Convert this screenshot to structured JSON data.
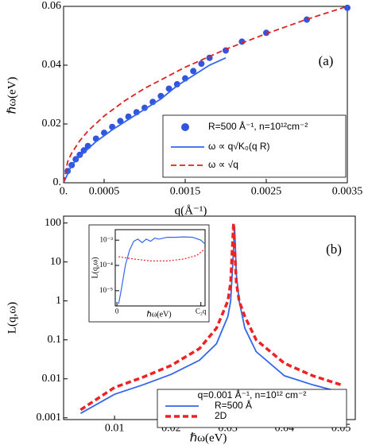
{
  "chart_data": [
    {
      "type": "line",
      "panel_label": "(a)",
      "x_label": "q(Å⁻¹)",
      "y_label": "ℏω(eV)",
      "xlim": [
        0,
        0.0035
      ],
      "ylim": [
        0,
        0.06
      ],
      "xticks": [
        {
          "value": 0,
          "label": "0."
        },
        0.0005,
        0.0015,
        0.0025,
        0.0035
      ],
      "yticks": [
        {
          "value": 0,
          "label": "0."
        },
        0.02,
        0.04,
        0.06
      ],
      "log_y": false,
      "legend": "lower right",
      "series": [
        {
          "name": "R=500 Å⁻¹, n=10¹²cm⁻²",
          "kind": "scatter",
          "color": "#3355dd",
          "x": [
            5e-05,
            0.0001,
            0.00015,
            0.0002,
            0.00025,
            0.0003,
            0.0004,
            0.0005,
            0.0006,
            0.0007,
            0.0008,
            0.0009,
            0.001,
            0.0011,
            0.0012,
            0.0013,
            0.0014,
            0.0015,
            0.0016,
            0.0017,
            0.0018,
            0.002,
            0.0022,
            0.0025,
            0.003,
            0.0035
          ],
          "values": [
            0.004,
            0.006,
            0.008,
            0.0095,
            0.011,
            0.0125,
            0.015,
            0.017,
            0.019,
            0.021,
            0.0225,
            0.024,
            0.0255,
            0.0275,
            0.0295,
            0.032,
            0.0335,
            0.0355,
            0.038,
            0.0405,
            0.0425,
            0.045,
            0.048,
            0.051,
            0.0555,
            0.0595
          ]
        },
        {
          "name": "ω ∝ q√K₀(q R)",
          "kind": "line",
          "dash": false,
          "color": "#3366ee",
          "x": [
            0,
            0.0001,
            0.0002,
            0.0004,
            0.0006,
            0.0008,
            0.001,
            0.0012,
            0.0014,
            0.0016,
            0.0018,
            0.002
          ],
          "values": [
            0,
            0.006,
            0.009,
            0.014,
            0.018,
            0.0215,
            0.025,
            0.0285,
            0.033,
            0.0365,
            0.04,
            0.0425
          ]
        },
        {
          "name": "ω ∝ √q",
          "kind": "line",
          "dash": true,
          "color": "#dd2222",
          "x": [
            0,
            5e-05,
            0.0001,
            0.0002,
            0.0003,
            0.0005,
            0.00075,
            0.001,
            0.0015,
            0.002,
            0.0025,
            0.003,
            0.0035
          ],
          "values": [
            0,
            0.0072,
            0.0101,
            0.0143,
            0.0176,
            0.0227,
            0.0278,
            0.0321,
            0.0393,
            0.0454,
            0.0507,
            0.0556,
            0.06
          ]
        }
      ]
    },
    {
      "type": "line",
      "panel_label": "(b)",
      "x_label": "ℏω(eV)",
      "y_label": "L(q,ω)",
      "xlim": [
        0.001,
        0.0525
      ],
      "ylim": [
        0.0009,
        150
      ],
      "xticks": [
        0.01,
        0.02,
        0.03,
        0.04,
        0.05
      ],
      "yticks": [
        0.001,
        0.01,
        0.1,
        1,
        10,
        100
      ],
      "log_y": true,
      "legend": "lower right",
      "legend_title": "q=0.001 Å⁻¹, n=10¹² cm⁻²",
      "series": [
        {
          "name": "R=500 Å",
          "kind": "line",
          "dash": false,
          "color": "#3366ee",
          "x": [
            0.004,
            0.01,
            0.015,
            0.02,
            0.025,
            0.028,
            0.03,
            0.0305,
            0.031,
            0.0312,
            0.0315,
            0.032,
            0.033,
            0.035,
            0.04,
            0.045,
            0.05
          ],
          "values": [
            0.0013,
            0.004,
            0.007,
            0.013,
            0.03,
            0.08,
            0.4,
            1,
            20,
            80,
            5,
            1,
            0.2,
            0.05,
            0.012,
            0.007,
            0.0045
          ]
        },
        {
          "name": "2D",
          "kind": "line",
          "dash": true,
          "color": "#ee2222",
          "x": [
            0.004,
            0.01,
            0.015,
            0.02,
            0.025,
            0.028,
            0.03,
            0.0305,
            0.031,
            0.0315,
            0.032,
            0.033,
            0.035,
            0.04,
            0.045,
            0.05
          ],
          "values": [
            0.0016,
            0.006,
            0.011,
            0.022,
            0.06,
            0.2,
            1,
            3,
            100,
            3,
            1,
            0.4,
            0.1,
            0.025,
            0.012,
            0.007
          ]
        }
      ]
    },
    {
      "type": "line",
      "x_label": "ℏω(eV)",
      "y_label": "L(q,ω)",
      "xlim": [
        -0.02,
        1.05
      ],
      "ylim": [
        2.5e-06,
        0.0026
      ],
      "xticks": [
        0,
        {
          "value": 1,
          "label": "C₂q"
        }
      ],
      "yticks": [
        {
          "value": 0.001,
          "label": "10⁻³"
        },
        {
          "value": 0.0001,
          "label": "10⁻⁴"
        },
        {
          "value": 1e-05,
          "label": "10⁻⁵"
        }
      ],
      "log_y": true,
      "series": [
        {
          "kind": "line",
          "dash": false,
          "color": "#3366ee",
          "x": [
            0.02,
            0.05,
            0.1,
            0.15,
            0.2,
            0.25,
            0.3,
            0.35,
            0.4,
            0.45,
            0.5,
            0.6,
            0.7,
            0.8,
            0.9,
            1.0,
            1.05
          ],
          "values": [
            3e-06,
            1e-05,
            0.0001,
            0.0004,
            0.0009,
            0.0011,
            0.0008,
            0.0011,
            0.0009,
            0.0012,
            0.0011,
            0.0013,
            0.0013,
            0.00135,
            0.0013,
            0.001,
            0.0007
          ]
        },
        {
          "kind": "line",
          "dash": "dot",
          "color": "#ee2222",
          "x": [
            0.02,
            0.2,
            0.4,
            0.6,
            0.8,
            0.95,
            1.05
          ],
          "values": [
            0.00022,
            0.00018,
            0.00015,
            0.00015,
            0.00018,
            0.00025,
            0.00045
          ]
        }
      ]
    }
  ]
}
